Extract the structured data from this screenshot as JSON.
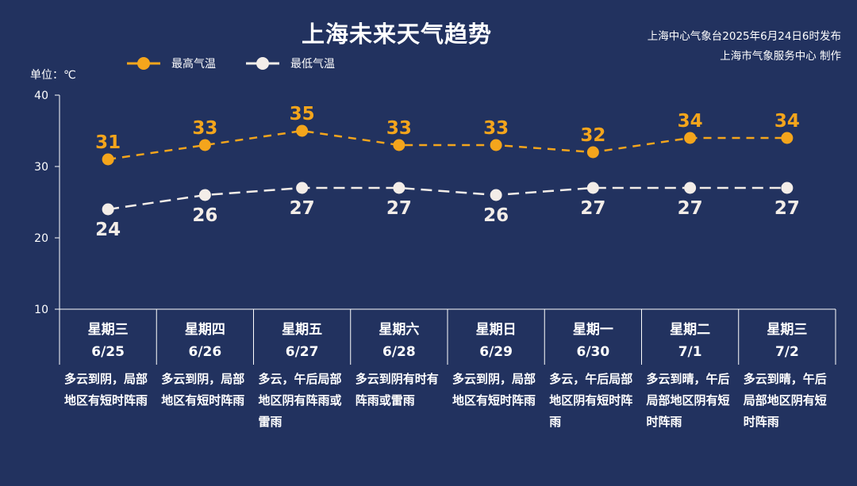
{
  "header": {
    "title": "上海未来天气趋势",
    "source_line1": "上海中心气象台2025年6月24日6时发布",
    "source_line2": "上海市气象服务中心 制作"
  },
  "unit_label": "单位：℃",
  "colors": {
    "background": "#22325f",
    "high": "#f4a51c",
    "low": "#f3ede8",
    "axis": "#ffffff"
  },
  "chart_data": {
    "type": "line",
    "categories": [
      "6/25",
      "6/26",
      "6/27",
      "6/28",
      "6/29",
      "6/30",
      "7/1",
      "7/2"
    ],
    "series": [
      {
        "name": "最高气温",
        "values": [
          31,
          33,
          35,
          33,
          33,
          32,
          34,
          34
        ]
      },
      {
        "name": "最低气温",
        "values": [
          24,
          26,
          27,
          27,
          26,
          27,
          27,
          27
        ]
      }
    ],
    "yticks": [
      10,
      20,
      30,
      40
    ],
    "ylim": [
      10,
      40
    ],
    "ylabel": "单位：℃",
    "legend_position": "top-left",
    "line_style": "dashed"
  },
  "days": [
    {
      "weekday": "星期三",
      "date": "6/25",
      "desc": "多云到阴，局部地区有短时阵雨"
    },
    {
      "weekday": "星期四",
      "date": "6/26",
      "desc": "多云到阴，局部地区有短时阵雨"
    },
    {
      "weekday": "星期五",
      "date": "6/27",
      "desc": "多云，午后局部地区阴有阵雨或雷雨"
    },
    {
      "weekday": "星期六",
      "date": "6/28",
      "desc": "多云到阴有时有阵雨或雷雨"
    },
    {
      "weekday": "星期日",
      "date": "6/29",
      "desc": "多云到阴，局部地区有短时阵雨"
    },
    {
      "weekday": "星期一",
      "date": "6/30",
      "desc": "多云，午后局部地区阴有短时阵雨"
    },
    {
      "weekday": "星期二",
      "date": "7/1",
      "desc": "多云到晴，午后局部地区阴有短时阵雨"
    },
    {
      "weekday": "星期三",
      "date": "7/2",
      "desc": "多云到晴，午后局部地区阴有短时阵雨"
    }
  ]
}
